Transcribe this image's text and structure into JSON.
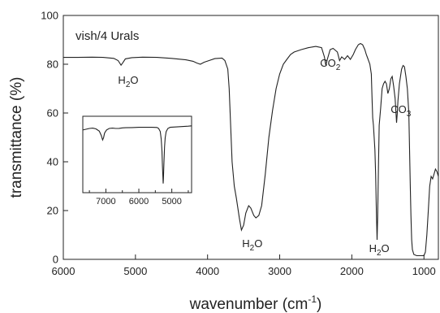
{
  "chart_data": {
    "type": "line",
    "title": "",
    "xlabel": {
      "main": "wavenumber (cm",
      "sup": "-1",
      "end": ")"
    },
    "ylabel": "transmittance (%)",
    "xlim": [
      6000,
      800
    ],
    "ylim": [
      0,
      100
    ],
    "x_ticks": [
      6000,
      5000,
      4000,
      3000,
      2000,
      1000
    ],
    "y_ticks": [
      0,
      20,
      40,
      60,
      80,
      100
    ],
    "grid": false,
    "sample_label": "vish/4 Urals",
    "annotations": [
      {
        "base": "H",
        "sub": "2",
        "rest": "O",
        "x": 5100,
        "y": 72
      },
      {
        "base": "CO",
        "sub": "2",
        "rest": "",
        "x": 2300,
        "y": 79
      },
      {
        "base": "H",
        "sub": "2",
        "rest": "O",
        "x": 3380,
        "y": 5
      },
      {
        "base": "H",
        "sub": "2",
        "rest": "O",
        "x": 1620,
        "y": 3
      },
      {
        "base": "CO",
        "sub": "3",
        "rest": "",
        "x": 1320,
        "y": 60
      }
    ],
    "series": [
      {
        "color": "#222222",
        "points": [
          [
            6000,
            82.8
          ],
          [
            5800,
            82.8
          ],
          [
            5600,
            82.9
          ],
          [
            5450,
            82.8
          ],
          [
            5300,
            82.4
          ],
          [
            5240,
            81.5
          ],
          [
            5200,
            79.6
          ],
          [
            5170,
            80.8
          ],
          [
            5140,
            82.2
          ],
          [
            5050,
            82.7
          ],
          [
            4900,
            82.9
          ],
          [
            4700,
            82.8
          ],
          [
            4500,
            82.4
          ],
          [
            4300,
            81.8
          ],
          [
            4200,
            81.2
          ],
          [
            4150,
            80.5
          ],
          [
            4100,
            80.0
          ],
          [
            4050,
            80.8
          ],
          [
            3980,
            81.5
          ],
          [
            3900,
            82.3
          ],
          [
            3800,
            82.5
          ],
          [
            3760,
            81.5
          ],
          [
            3720,
            78
          ],
          [
            3700,
            70
          ],
          [
            3680,
            55
          ],
          [
            3660,
            40
          ],
          [
            3630,
            30
          ],
          [
            3600,
            25
          ],
          [
            3560,
            17
          ],
          [
            3530,
            12
          ],
          [
            3500,
            14
          ],
          [
            3470,
            19
          ],
          [
            3430,
            22
          ],
          [
            3400,
            21
          ],
          [
            3360,
            18
          ],
          [
            3330,
            17
          ],
          [
            3290,
            18
          ],
          [
            3250,
            22
          ],
          [
            3200,
            35
          ],
          [
            3150,
            50
          ],
          [
            3100,
            61
          ],
          [
            3050,
            70
          ],
          [
            3000,
            76
          ],
          [
            2950,
            80
          ],
          [
            2900,
            82
          ],
          [
            2850,
            84
          ],
          [
            2800,
            85
          ],
          [
            2700,
            86
          ],
          [
            2600,
            86.8
          ],
          [
            2500,
            87.3
          ],
          [
            2420,
            86.8
          ],
          [
            2380,
            83
          ],
          [
            2360,
            79.5
          ],
          [
            2340,
            82
          ],
          [
            2300,
            86
          ],
          [
            2260,
            86.5
          ],
          [
            2200,
            85
          ],
          [
            2170,
            81.5
          ],
          [
            2140,
            83
          ],
          [
            2100,
            82
          ],
          [
            2060,
            83.5
          ],
          [
            2020,
            82
          ],
          [
            1980,
            84
          ],
          [
            1950,
            86
          ],
          [
            1910,
            88
          ],
          [
            1880,
            88.5
          ],
          [
            1850,
            88
          ],
          [
            1820,
            86
          ],
          [
            1800,
            84
          ],
          [
            1780,
            82.5
          ],
          [
            1750,
            80
          ],
          [
            1730,
            76
          ],
          [
            1720,
            66
          ],
          [
            1710,
            58
          ],
          [
            1700,
            55
          ],
          [
            1690,
            50
          ],
          [
            1680,
            45
          ],
          [
            1670,
            35
          ],
          [
            1660,
            20
          ],
          [
            1650,
            8
          ],
          [
            1642,
            17
          ],
          [
            1630,
            40
          ],
          [
            1620,
            55
          ],
          [
            1600,
            62
          ],
          [
            1580,
            70
          ],
          [
            1560,
            72
          ],
          [
            1540,
            73
          ],
          [
            1520,
            72
          ],
          [
            1500,
            68
          ],
          [
            1480,
            70
          ],
          [
            1460,
            74
          ],
          [
            1440,
            75
          ],
          [
            1420,
            71
          ],
          [
            1400,
            66
          ],
          [
            1390,
            61
          ],
          [
            1380,
            56
          ],
          [
            1370,
            60
          ],
          [
            1360,
            65
          ],
          [
            1340,
            72
          ],
          [
            1310,
            78
          ],
          [
            1290,
            79.5
          ],
          [
            1270,
            79
          ],
          [
            1250,
            75
          ],
          [
            1230,
            70
          ],
          [
            1210,
            60
          ],
          [
            1200,
            45
          ],
          [
            1190,
            30
          ],
          [
            1180,
            18
          ],
          [
            1170,
            8
          ],
          [
            1160,
            4
          ],
          [
            1140,
            2
          ],
          [
            1100,
            1.5
          ],
          [
            1050,
            1.5
          ],
          [
            1000,
            1.5
          ],
          [
            980,
            3
          ],
          [
            960,
            10
          ],
          [
            940,
            20
          ],
          [
            920,
            30
          ],
          [
            900,
            34
          ],
          [
            880,
            33
          ],
          [
            860,
            35
          ],
          [
            840,
            37
          ],
          [
            820,
            36
          ],
          [
            800,
            34
          ]
        ]
      }
    ],
    "inset": {
      "type": "line",
      "xlim": [
        7700,
        4400
      ],
      "x_ticks": [
        7000,
        6000,
        5000
      ],
      "ylim": [
        0,
        100
      ],
      "series": [
        {
          "color": "#222222",
          "points": [
            [
              7700,
              82
            ],
            [
              7500,
              84
            ],
            [
              7400,
              84.5
            ],
            [
              7300,
              83.5
            ],
            [
              7200,
              80.5
            ],
            [
              7140,
              75
            ],
            [
              7100,
              69
            ],
            [
              7070,
              72
            ],
            [
              7040,
              78
            ],
            [
              6980,
              82
            ],
            [
              6900,
              84
            ],
            [
              6800,
              84.5
            ],
            [
              6700,
              84
            ],
            [
              6600,
              84.2
            ],
            [
              6500,
              84.8
            ],
            [
              6400,
              85
            ],
            [
              6200,
              85.2
            ],
            [
              6000,
              85.5
            ],
            [
              5800,
              85.5
            ],
            [
              5600,
              85.5
            ],
            [
              5450,
              85.3
            ],
            [
              5400,
              84
            ],
            [
              5350,
              80
            ],
            [
              5320,
              70
            ],
            [
              5300,
              55
            ],
            [
              5285,
              35
            ],
            [
              5270,
              20
            ],
            [
              5262,
              12
            ],
            [
              5255,
              18
            ],
            [
              5240,
              38
            ],
            [
              5220,
              60
            ],
            [
              5200,
              72
            ],
            [
              5170,
              80
            ],
            [
              5120,
              84
            ],
            [
              5050,
              85.5
            ],
            [
              4900,
              86
            ],
            [
              4700,
              86.5
            ],
            [
              4500,
              87
            ],
            [
              4400,
              87.5
            ]
          ]
        }
      ]
    }
  }
}
